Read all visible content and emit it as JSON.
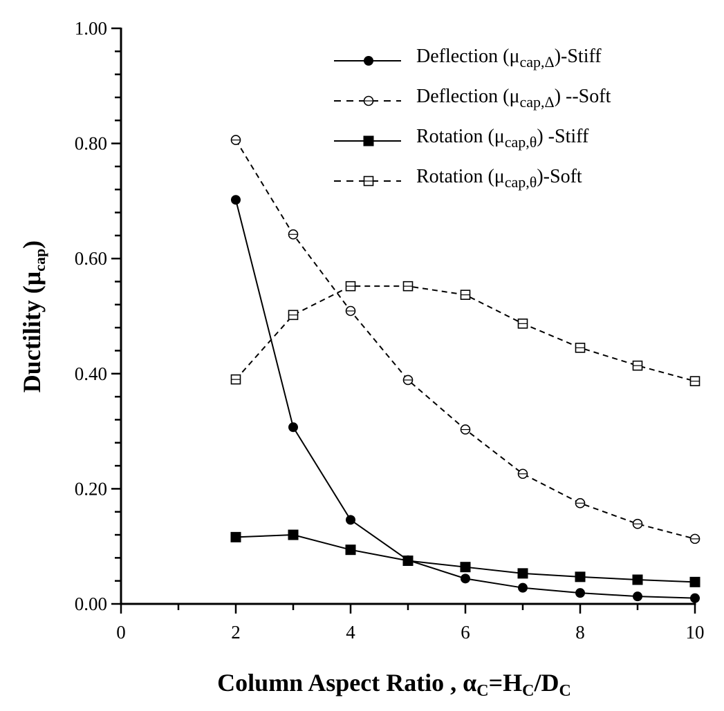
{
  "chart_data": {
    "type": "line",
    "xlabel_parts": [
      {
        "t": "Column Aspect Ratio , α",
        "sub": false
      },
      {
        "t": "C",
        "sub": true
      },
      {
        "t": "=H",
        "sub": false
      },
      {
        "t": "C",
        "sub": true
      },
      {
        "t": "/D",
        "sub": false
      },
      {
        "t": "C",
        "sub": true
      }
    ],
    "ylabel_parts": [
      {
        "t": "Ductility (μ",
        "sub": false
      },
      {
        "t": "cap",
        "sub": true
      },
      {
        "t": ")",
        "sub": false
      }
    ],
    "xlim": [
      0,
      10
    ],
    "ylim": [
      0,
      1
    ],
    "x_ticks": [
      0,
      2,
      4,
      6,
      8,
      10
    ],
    "x_tick_labels": [
      "0",
      "2",
      "4",
      "6",
      "8",
      "10"
    ],
    "y_ticks": [
      0,
      0.2,
      0.4,
      0.6,
      0.8,
      1.0
    ],
    "y_tick_labels": [
      "0.00",
      "0.20",
      "0.40",
      "0.60",
      "0.80",
      "1.00"
    ],
    "grid": false,
    "legend_position": "top-right",
    "x": [
      2,
      3,
      4,
      5,
      6,
      7,
      8,
      9,
      10
    ],
    "series": [
      {
        "name_parts": [
          {
            "t": "Deflection (μ",
            "sub": false
          },
          {
            "t": "cap,Δ",
            "sub": true
          },
          {
            "t": ")-Stiff",
            "sub": false
          }
        ],
        "line": "solid",
        "marker": "filled-circle",
        "values": [
          0.702,
          0.307,
          0.146,
          0.076,
          0.044,
          0.028,
          0.019,
          0.013,
          0.01
        ]
      },
      {
        "name_parts": [
          {
            "t": "Deflection (μ",
            "sub": false
          },
          {
            "t": "cap,Δ",
            "sub": true
          },
          {
            "t": ") --Soft",
            "sub": false
          }
        ],
        "line": "dashed",
        "marker": "open-circle",
        "values": [
          0.806,
          0.642,
          0.509,
          0.389,
          0.303,
          0.226,
          0.175,
          0.139,
          0.113
        ]
      },
      {
        "name_parts": [
          {
            "t": "Rotation (μ",
            "sub": false
          },
          {
            "t": "cap,θ",
            "sub": true
          },
          {
            "t": ") -Stiff",
            "sub": false
          }
        ],
        "line": "solid",
        "marker": "filled-square",
        "values": [
          0.116,
          0.12,
          0.094,
          0.075,
          0.064,
          0.053,
          0.047,
          0.042,
          0.038
        ]
      },
      {
        "name_parts": [
          {
            "t": "Rotation (μ",
            "sub": false
          },
          {
            "t": "cap,θ",
            "sub": true
          },
          {
            "t": ")-Soft",
            "sub": false
          }
        ],
        "line": "dashed",
        "marker": "open-square",
        "values": [
          0.39,
          0.502,
          0.552,
          0.552,
          0.537,
          0.487,
          0.445,
          0.414,
          0.387
        ]
      }
    ],
    "colors": {
      "ink": "#000000",
      "background": "#ffffff"
    }
  }
}
